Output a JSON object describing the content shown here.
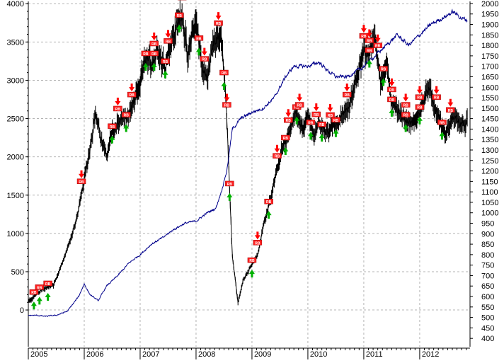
{
  "chart_data": {
    "type": "line",
    "title": "",
    "x_tick_labels": [
      "2005",
      "2006",
      "2007",
      "2008",
      "2009",
      "2010",
      "2011",
      "2012"
    ],
    "left_axis": {
      "ylim": [
        -480,
        4030
      ],
      "ticks": [
        0,
        500,
        1000,
        1500,
        2000,
        2500,
        3000,
        3500,
        4000
      ]
    },
    "right_axis": {
      "ylim": [
        360,
        2010
      ],
      "ticks": [
        400,
        450,
        500,
        550,
        600,
        650,
        700,
        750,
        800,
        850,
        900,
        950,
        1000,
        1050,
        1100,
        1150,
        1200,
        1250,
        1300,
        1350,
        1400,
        1450,
        1500,
        1550,
        1600,
        1650,
        1700,
        1750,
        1800,
        1850,
        1900,
        1950,
        2000
      ]
    },
    "grid": true,
    "legend": "none",
    "series": [
      {
        "axis": "left",
        "color": "#000000",
        "x": [
          2005.0,
          2005.15,
          2005.3,
          2005.45,
          2005.6,
          2005.75,
          2005.9,
          2006.0,
          2006.1,
          2006.2,
          2006.3,
          2006.4,
          2006.5,
          2006.6,
          2006.75,
          2006.9,
          2007.0,
          2007.1,
          2007.2,
          2007.3,
          2007.45,
          2007.6,
          2007.75,
          2007.85,
          2008.0,
          2008.1,
          2008.2,
          2008.3,
          2008.45,
          2008.55,
          2008.65,
          2008.75,
          2008.85,
          2009.0,
          2009.1,
          2009.2,
          2009.35,
          2009.5,
          2009.65,
          2009.8,
          2009.9,
          2010.0,
          2010.1,
          2010.2,
          2010.3,
          2010.45,
          2010.6,
          2010.75,
          2010.9,
          2011.0,
          2011.08,
          2011.2,
          2011.3,
          2011.4,
          2011.5,
          2011.6,
          2011.75,
          2011.9,
          2012.0,
          2012.15,
          2012.3,
          2012.45,
          2012.6,
          2012.75,
          2012.85
        ],
        "values": [
          90,
          230,
          280,
          330,
          600,
          900,
          1300,
          1700,
          2100,
          2600,
          2200,
          2000,
          2350,
          2450,
          2500,
          2700,
          3000,
          3300,
          3200,
          3400,
          3200,
          3600,
          3900,
          3300,
          3800,
          3200,
          3000,
          3500,
          3600,
          2500,
          700,
          100,
          400,
          600,
          700,
          1100,
          1500,
          2000,
          2300,
          2600,
          2400,
          2500,
          2300,
          2450,
          2300,
          2400,
          2500,
          2700,
          3100,
          3400,
          3300,
          3550,
          3000,
          3200,
          2700,
          2600,
          2500,
          2400,
          2600,
          2900,
          2600,
          2300,
          2500,
          2450,
          2450
        ]
      },
      {
        "axis": "right",
        "color": "#00008b",
        "x": [
          2005.0,
          2005.15,
          2005.3,
          2005.5,
          2005.7,
          2005.9,
          2006.0,
          2006.1,
          2006.25,
          2006.4,
          2006.6,
          2006.8,
          2007.0,
          2007.2,
          2007.4,
          2007.6,
          2007.8,
          2008.0,
          2008.2,
          2008.35,
          2008.45,
          2008.55,
          2008.65,
          2008.8,
          2009.0,
          2009.2,
          2009.4,
          2009.6,
          2009.75,
          2010.0,
          2010.2,
          2010.35,
          2010.5,
          2010.7,
          2010.9,
          2011.0,
          2011.2,
          2011.4,
          2011.6,
          2011.8,
          2012.0,
          2012.2,
          2012.4,
          2012.6,
          2012.75,
          2012.85
        ],
        "values": [
          510,
          510,
          505,
          510,
          530,
          600,
          660,
          610,
          580,
          650,
          700,
          760,
          800,
          850,
          880,
          920,
          950,
          960,
          1000,
          1020,
          1100,
          1200,
          1400,
          1450,
          1480,
          1500,
          1550,
          1650,
          1700,
          1700,
          1720,
          1680,
          1650,
          1650,
          1680,
          1700,
          1750,
          1800,
          1850,
          1800,
          1850,
          1900,
          1930,
          1960,
          1930,
          1920
        ]
      }
    ],
    "up_arrow_years": [
      2005.1,
      2005.2,
      2005.35,
      2006.5,
      2006.75,
      2007.1,
      2007.25,
      2007.45,
      2007.7,
      2008.05,
      2008.5,
      2008.6,
      2009.0,
      2009.3,
      2009.6,
      2009.8,
      2010.05,
      2010.25,
      2010.5,
      2011.1,
      2011.35,
      2011.5,
      2011.75,
      2012.0,
      2012.4
    ],
    "down_arrow_years": [
      2005.95,
      2006.6,
      2006.85,
      2007.25,
      2007.5,
      2007.75,
      2008.15,
      2008.4,
      2008.55,
      2009.1,
      2009.45,
      2009.65,
      2009.85,
      2010.15,
      2010.4,
      2010.7,
      2011.0,
      2011.1,
      2011.25,
      2011.5,
      2011.75,
      2012.0,
      2012.3,
      2012.55
    ],
    "marker_label": "RB"
  }
}
